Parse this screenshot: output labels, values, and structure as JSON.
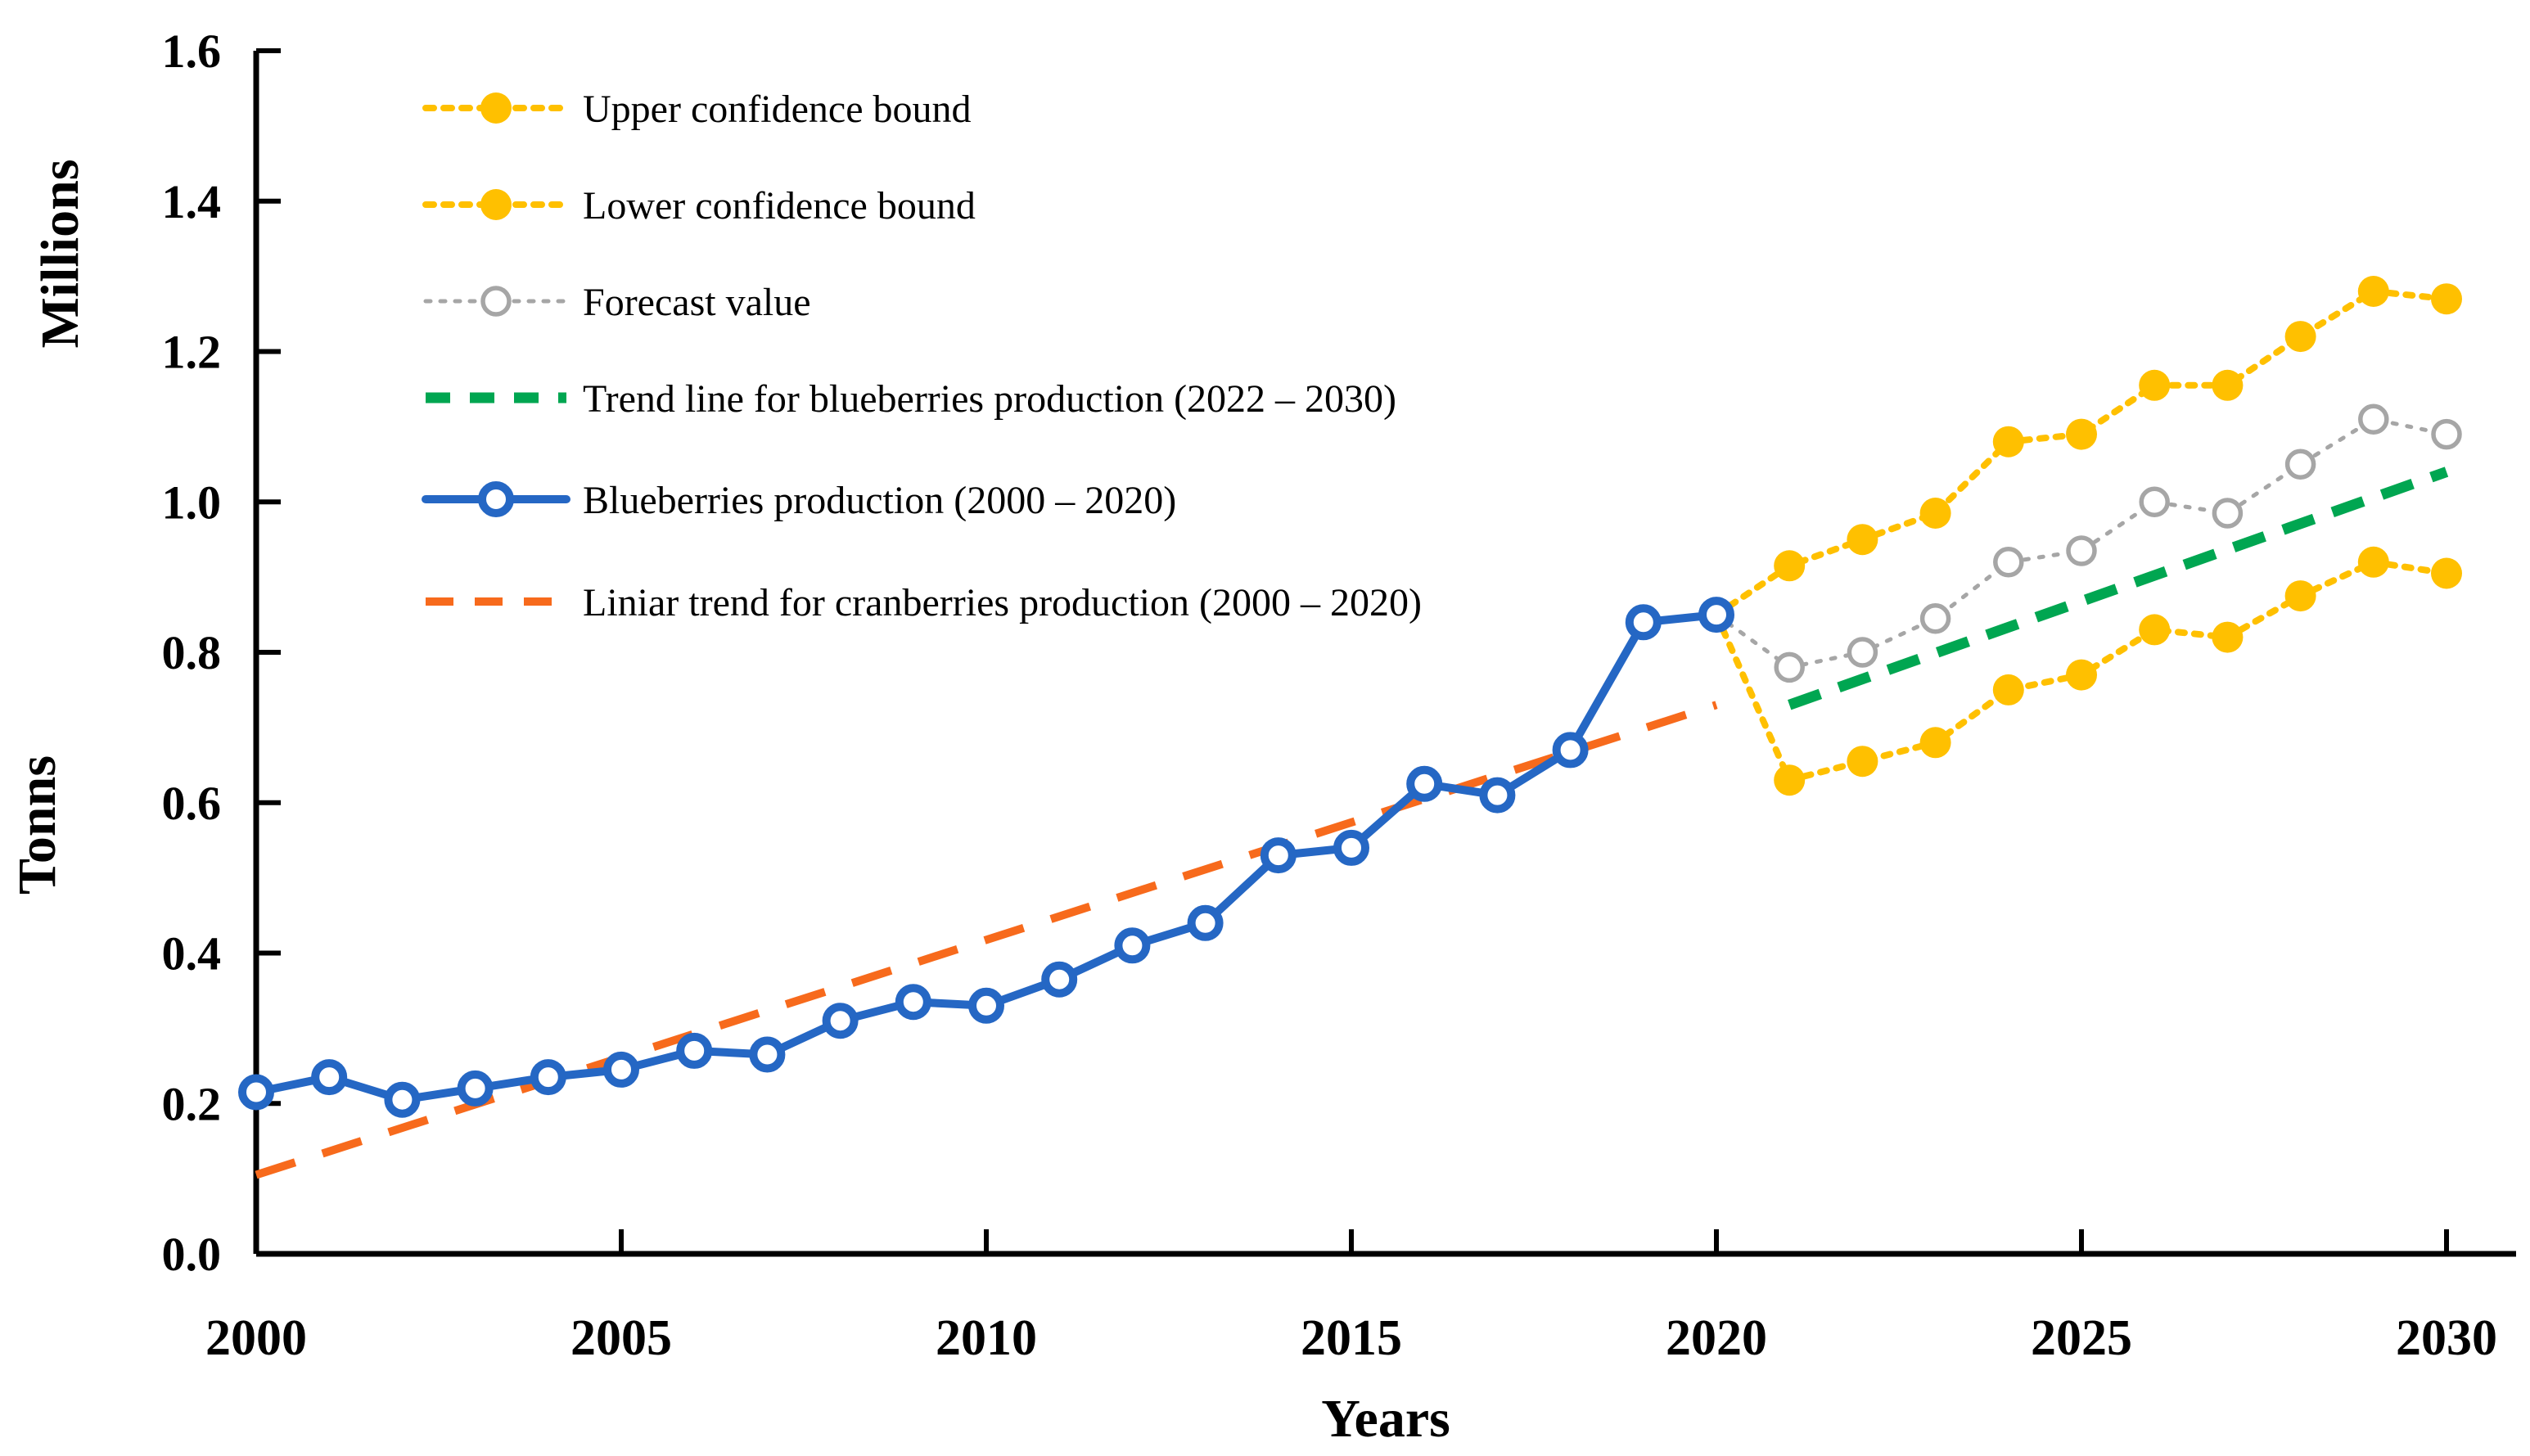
{
  "figure": {
    "background": "#ffffff",
    "x_axis_title": "Years",
    "y_axis_title": "Tonns",
    "y_axis_units_label": "Millions"
  },
  "chart_data": {
    "type": "line",
    "title": "",
    "xlabel": "Years",
    "ylabel": "Tonns",
    "y_units": "Millions",
    "xlim": [
      2000,
      2030
    ],
    "ylim": [
      0.0,
      1.6
    ],
    "grid": false,
    "legend_position": "top-left-inside",
    "x_axis": {
      "title": "Years",
      "tick_values": [
        2000,
        2005,
        2010,
        2015,
        2020,
        2025,
        2030
      ],
      "tick_labels": [
        "2000",
        "2005",
        "2010",
        "2015",
        "2020",
        "2025",
        "2030"
      ]
    },
    "y_axis": {
      "title": "Tonns",
      "units_label": "Millions",
      "tick_values": [
        0.0,
        0.2,
        0.4,
        0.6,
        0.8,
        1.0,
        1.2,
        1.4,
        1.6
      ],
      "tick_labels": [
        "0.0",
        "0.2",
        "0.4",
        "0.6",
        "0.8",
        "1.0",
        "1.2",
        "1.4",
        "1.6"
      ]
    },
    "series": [
      {
        "id": "upper-bound",
        "name": "Upper confidence bound",
        "color": "#FFC000",
        "line_style": "dotted",
        "marker": "filled-circle",
        "skip_first_marker": true,
        "x": [
          2020,
          2021,
          2022,
          2023,
          2024,
          2025,
          2026,
          2027,
          2028,
          2029,
          2030
        ],
        "values": [
          0.85,
          0.915,
          0.95,
          0.985,
          1.08,
          1.09,
          1.155,
          1.155,
          1.22,
          1.28,
          1.27
        ]
      },
      {
        "id": "lower-bound",
        "name": "Lower confidence bound",
        "color": "#FFC000",
        "line_style": "dotted",
        "marker": "filled-circle",
        "skip_first_marker": true,
        "x": [
          2020,
          2021,
          2022,
          2023,
          2024,
          2025,
          2026,
          2027,
          2028,
          2029,
          2030
        ],
        "values": [
          0.85,
          0.63,
          0.655,
          0.68,
          0.75,
          0.77,
          0.83,
          0.82,
          0.875,
          0.92,
          0.905
        ]
      },
      {
        "id": "forecast",
        "name": "Forecast value",
        "color": "#A6A6A6",
        "line_style": "dotted",
        "marker": "open-circle",
        "skip_first_marker": true,
        "x": [
          2020,
          2021,
          2022,
          2023,
          2024,
          2025,
          2026,
          2027,
          2028,
          2029,
          2030
        ],
        "values": [
          0.85,
          0.78,
          0.8,
          0.845,
          0.92,
          0.935,
          1.0,
          0.985,
          1.05,
          1.11,
          1.09
        ]
      },
      {
        "id": "trend-blueberries",
        "name": "Trend line for blueberries production (2022 – 2030)",
        "color": "#00A651",
        "line_style": "dashed",
        "marker": "none",
        "skip_first_marker": false,
        "x": [
          2021,
          2030
        ],
        "values": [
          0.73,
          1.04
        ]
      },
      {
        "id": "blueberries",
        "name": "Blueberries production (2000 – 2020)",
        "color": "#2567C4",
        "line_style": "solid",
        "marker": "open-circle",
        "skip_first_marker": false,
        "x": [
          2000,
          2001,
          2002,
          2003,
          2004,
          2005,
          2006,
          2007,
          2008,
          2009,
          2010,
          2011,
          2012,
          2013,
          2014,
          2015,
          2016,
          2017,
          2018,
          2019,
          2020
        ],
        "values": [
          0.215,
          0.235,
          0.205,
          0.22,
          0.235,
          0.245,
          0.27,
          0.265,
          0.31,
          0.335,
          0.33,
          0.365,
          0.41,
          0.44,
          0.53,
          0.54,
          0.625,
          0.61,
          0.67,
          0.84,
          0.85
        ]
      },
      {
        "id": "trend-cranberries",
        "name": "Liniar trend for cranberries production (2000 – 2020)",
        "color": "#F76A1C",
        "line_style": "dashed",
        "marker": "none",
        "skip_first_marker": false,
        "x": [
          2000,
          2020
        ],
        "values": [
          0.105,
          0.73
        ]
      }
    ]
  }
}
